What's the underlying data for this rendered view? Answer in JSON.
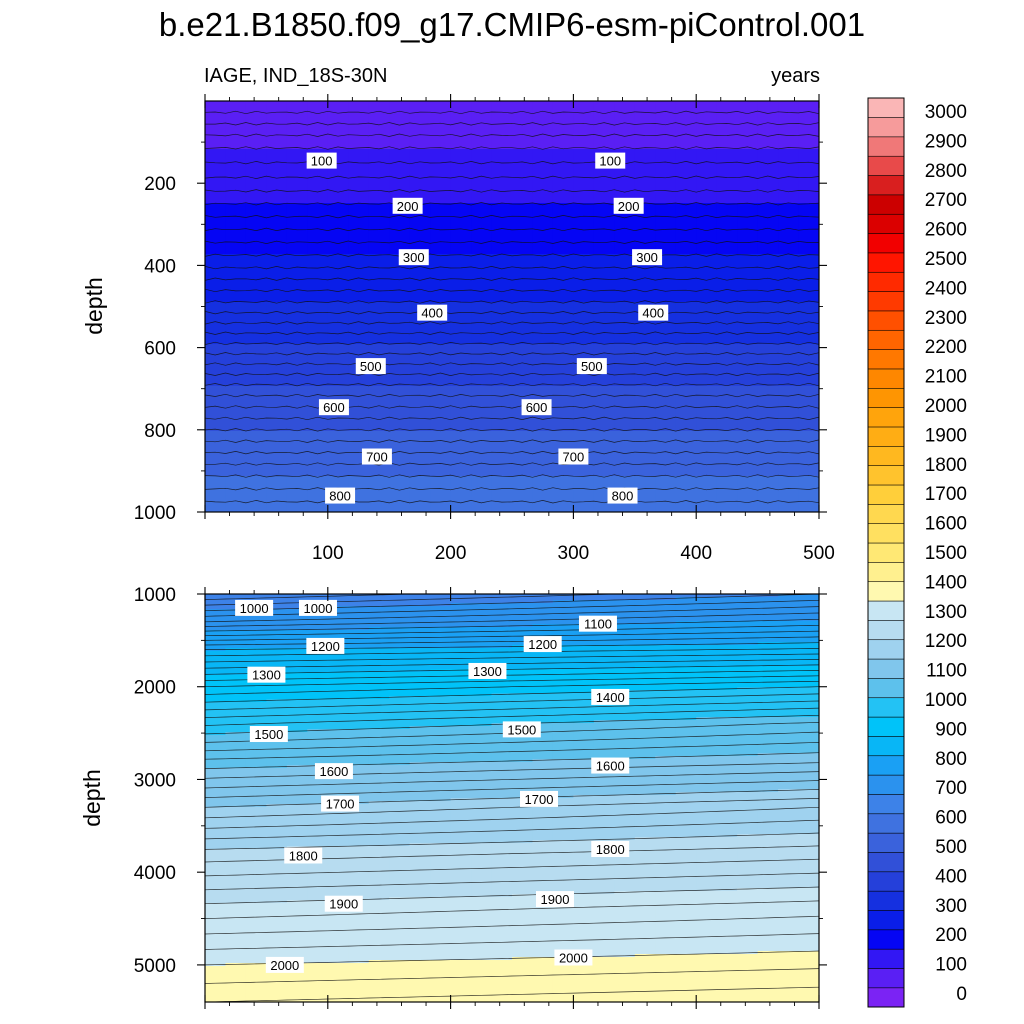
{
  "title": "b.e21.B1850.f09_g17.CMIP6-esm-piControl.001",
  "left_string": "IAGE, IND_18S-30N",
  "right_string": "years",
  "colors": {
    "levels": [
      "#7b23f4",
      "#5a1ff4",
      "#3217f4",
      "#0505f4",
      "#0a1ee8",
      "#1530e0",
      "#2540da",
      "#3150d8",
      "#3a62dc",
      "#3f72e0",
      "#3d82e8",
      "#2b92ee",
      "#1aa0f4",
      "#08b6f6",
      "#00c3f9",
      "#23c2f4",
      "#5dc1ec",
      "#80c6ec",
      "#9fd2ef",
      "#b7dcf0",
      "#c8e6f3",
      "#fff9b0",
      "#fff08f",
      "#ffe874",
      "#ffe060",
      "#ffd84f",
      "#ffcf3a",
      "#ffc32d",
      "#ffb81f",
      "#ffad14",
      "#ffa40c",
      "#fe9502",
      "#fe8700",
      "#ff7800",
      "#ff6500",
      "#ff5000",
      "#ff3a00",
      "#ff2a00",
      "#ff1500",
      "#f20000",
      "#db0000",
      "#cc0000",
      "#d91f1f",
      "#e84a4a",
      "#f07878",
      "#f69b9b",
      "#fab6b6"
    ]
  },
  "colorbar": {
    "labels": [
      "0",
      "100",
      "200",
      "300",
      "400",
      "500",
      "600",
      "700",
      "800",
      "900",
      "1000",
      "1100",
      "1200",
      "1300",
      "1400",
      "1500",
      "1600",
      "1700",
      "1800",
      "1900",
      "2000",
      "2100",
      "2200",
      "2300",
      "2400",
      "2500",
      "2600",
      "2700",
      "2800",
      "2900",
      "3000"
    ],
    "levels_min": 0,
    "levels_max": 3000,
    "interval": 100
  },
  "chart_data": [
    {
      "type": "heatmap",
      "subtype": "contour",
      "panel": "upper",
      "title": "IAGE, IND_18S-30N",
      "units": "years",
      "xlabel": "",
      "ylabel": "depth",
      "xlim": [
        0,
        500
      ],
      "ylim": [
        1000,
        0
      ],
      "x_ticks": [
        "100",
        "200",
        "300",
        "400",
        "500"
      ],
      "y_ticks": [
        "200",
        "400",
        "600",
        "800",
        "1000"
      ],
      "contour_interval": 25,
      "profile": [
        {
          "depth": 0,
          "value": 0
        },
        {
          "depth": 100,
          "value": 90
        },
        {
          "depth": 200,
          "value": 160
        },
        {
          "depth": 300,
          "value": 240
        },
        {
          "depth": 400,
          "value": 320
        },
        {
          "depth": 500,
          "value": 410
        },
        {
          "depth": 600,
          "value": 510
        },
        {
          "depth": 700,
          "value": 610
        },
        {
          "depth": 800,
          "value": 700
        },
        {
          "depth": 900,
          "value": 790
        },
        {
          "depth": 1000,
          "value": 870
        }
      ],
      "contour_labels": [
        {
          "x": 95,
          "depth": 145,
          "text": "100"
        },
        {
          "x": 330,
          "depth": 145,
          "text": "100"
        },
        {
          "x": 165,
          "depth": 255,
          "text": "200"
        },
        {
          "x": 345,
          "depth": 255,
          "text": "200"
        },
        {
          "x": 170,
          "depth": 380,
          "text": "300"
        },
        {
          "x": 360,
          "depth": 380,
          "text": "300"
        },
        {
          "x": 185,
          "depth": 515,
          "text": "400"
        },
        {
          "x": 365,
          "depth": 515,
          "text": "400"
        },
        {
          "x": 135,
          "depth": 645,
          "text": "500"
        },
        {
          "x": 315,
          "depth": 645,
          "text": "500"
        },
        {
          "x": 105,
          "depth": 745,
          "text": "600"
        },
        {
          "x": 270,
          "depth": 745,
          "text": "600"
        },
        {
          "x": 140,
          "depth": 865,
          "text": "700"
        },
        {
          "x": 300,
          "depth": 865,
          "text": "700"
        },
        {
          "x": 110,
          "depth": 960,
          "text": "800"
        },
        {
          "x": 340,
          "depth": 960,
          "text": "800"
        }
      ]
    },
    {
      "type": "heatmap",
      "subtype": "contour",
      "panel": "lower",
      "xlabel": "",
      "ylabel": "depth",
      "xlim": [
        0,
        500
      ],
      "ylim": [
        5400,
        1000
      ],
      "y_ticks": [
        "1000",
        "2000",
        "3000",
        "4000",
        "5000"
      ],
      "contour_interval": 25,
      "profile_left": [
        {
          "depth": 1000,
          "value": 925
        },
        {
          "depth": 1300,
          "value": 1050
        },
        {
          "depth": 1600,
          "value": 1200
        },
        {
          "depth": 2000,
          "value": 1350
        },
        {
          "depth": 2400,
          "value": 1470
        },
        {
          "depth": 2800,
          "value": 1580
        },
        {
          "depth": 3300,
          "value": 1700
        },
        {
          "depth": 3800,
          "value": 1810
        },
        {
          "depth": 4400,
          "value": 1910
        },
        {
          "depth": 5000,
          "value": 2000
        },
        {
          "depth": 5400,
          "value": 2050
        }
      ],
      "profile_right": [
        {
          "depth": 1000,
          "value": 1000
        },
        {
          "depth": 1300,
          "value": 1110
        },
        {
          "depth": 1600,
          "value": 1230
        },
        {
          "depth": 2000,
          "value": 1400
        },
        {
          "depth": 2400,
          "value": 1530
        },
        {
          "depth": 2800,
          "value": 1620
        },
        {
          "depth": 3300,
          "value": 1750
        },
        {
          "depth": 3800,
          "value": 1840
        },
        {
          "depth": 4400,
          "value": 1940
        },
        {
          "depth": 5000,
          "value": 2020
        },
        {
          "depth": 5400,
          "value": 2070
        }
      ],
      "contour_labels": [
        {
          "x": 40,
          "depth": 1150,
          "text": "1000"
        },
        {
          "x": 92,
          "depth": 1150,
          "text": "1000"
        },
        {
          "x": 320,
          "depth": 1320,
          "text": "1100"
        },
        {
          "x": 98,
          "depth": 1560,
          "text": "1200"
        },
        {
          "x": 275,
          "depth": 1540,
          "text": "1200"
        },
        {
          "x": 50,
          "depth": 1870,
          "text": "1300"
        },
        {
          "x": 230,
          "depth": 1830,
          "text": "1300"
        },
        {
          "x": 330,
          "depth": 2110,
          "text": "1400"
        },
        {
          "x": 52,
          "depth": 2510,
          "text": "1500"
        },
        {
          "x": 258,
          "depth": 2460,
          "text": "1500"
        },
        {
          "x": 105,
          "depth": 2910,
          "text": "1600"
        },
        {
          "x": 330,
          "depth": 2850,
          "text": "1600"
        },
        {
          "x": 110,
          "depth": 3260,
          "text": "1700"
        },
        {
          "x": 272,
          "depth": 3210,
          "text": "1700"
        },
        {
          "x": 80,
          "depth": 3820,
          "text": "1800"
        },
        {
          "x": 330,
          "depth": 3750,
          "text": "1800"
        },
        {
          "x": 113,
          "depth": 4340,
          "text": "1900"
        },
        {
          "x": 285,
          "depth": 4290,
          "text": "1900"
        },
        {
          "x": 65,
          "depth": 5000,
          "text": "2000"
        },
        {
          "x": 300,
          "depth": 4920,
          "text": "2000"
        }
      ]
    }
  ]
}
